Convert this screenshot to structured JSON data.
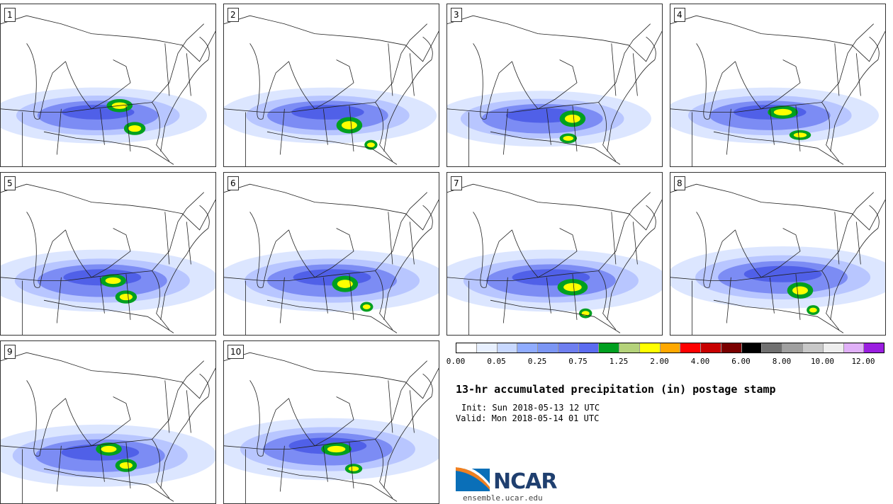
{
  "panels": [
    {
      "label": "1",
      "blobs": [
        [
          0.45,
          0.68,
          0.28,
          0.09
        ],
        [
          0.55,
          0.62,
          0.06,
          0.04
        ],
        [
          0.62,
          0.76,
          0.05,
          0.04
        ]
      ]
    },
    {
      "label": "2",
      "blobs": [
        [
          0.48,
          0.68,
          0.28,
          0.09
        ],
        [
          0.58,
          0.74,
          0.06,
          0.05
        ],
        [
          0.68,
          0.86,
          0.03,
          0.03
        ]
      ]
    },
    {
      "label": "3",
      "blobs": [
        [
          0.44,
          0.7,
          0.28,
          0.09
        ],
        [
          0.58,
          0.7,
          0.06,
          0.05
        ],
        [
          0.56,
          0.82,
          0.04,
          0.03
        ]
      ]
    },
    {
      "label": "4",
      "blobs": [
        [
          0.46,
          0.68,
          0.28,
          0.09
        ],
        [
          0.52,
          0.66,
          0.07,
          0.04
        ],
        [
          0.6,
          0.8,
          0.05,
          0.03
        ]
      ]
    },
    {
      "label": "5",
      "blobs": [
        [
          0.47,
          0.66,
          0.3,
          0.1
        ],
        [
          0.52,
          0.66,
          0.06,
          0.04
        ],
        [
          0.58,
          0.76,
          0.05,
          0.04
        ]
      ]
    },
    {
      "label": "6",
      "blobs": [
        [
          0.5,
          0.66,
          0.3,
          0.1
        ],
        [
          0.56,
          0.68,
          0.06,
          0.05
        ],
        [
          0.66,
          0.82,
          0.03,
          0.03
        ]
      ]
    },
    {
      "label": "7",
      "blobs": [
        [
          0.48,
          0.66,
          0.3,
          0.1
        ],
        [
          0.58,
          0.7,
          0.07,
          0.05
        ],
        [
          0.64,
          0.86,
          0.03,
          0.03
        ]
      ]
    },
    {
      "label": "8",
      "blobs": [
        [
          0.52,
          0.64,
          0.3,
          0.1
        ],
        [
          0.6,
          0.72,
          0.06,
          0.05
        ],
        [
          0.66,
          0.84,
          0.03,
          0.03
        ]
      ]
    },
    {
      "label": "9",
      "blobs": [
        [
          0.46,
          0.7,
          0.3,
          0.1
        ],
        [
          0.5,
          0.66,
          0.06,
          0.04
        ],
        [
          0.58,
          0.76,
          0.05,
          0.04
        ]
      ]
    },
    {
      "label": "10",
      "blobs": [
        [
          0.48,
          0.66,
          0.3,
          0.1
        ],
        [
          0.52,
          0.66,
          0.07,
          0.04
        ],
        [
          0.6,
          0.78,
          0.04,
          0.03
        ]
      ]
    }
  ],
  "colorbar": {
    "colors": [
      "#ffffff",
      "#e8f0ff",
      "#c8d8ff",
      "#90acff",
      "#7c96f4",
      "#6f7ff0",
      "#5c6cf0",
      "#00a020",
      "#b4d27a",
      "#ffff00",
      "#ffa800",
      "#ff0000",
      "#c80000",
      "#7a0000",
      "#000000",
      "#707070",
      "#a0a0a0",
      "#c8c8c8",
      "#eeeeee",
      "#e0b0f8",
      "#9a1ee0"
    ],
    "tick_labels": [
      "0.00",
      "0.05",
      "0.25",
      "0.75",
      "1.25",
      "2.00",
      "4.00",
      "6.00",
      "8.00",
      "10.00",
      "12.00"
    ]
  },
  "title": "13-hr accumulated precipitation (in) postage stamp",
  "init": "Init: Sun 2018-05-13 12 UTC",
  "valid": "Valid: Mon 2018-05-14 01 UTC",
  "logo": {
    "text": "NCAR",
    "site": "ensemble.ucar.edu",
    "colors": {
      "blue": "#0a6fb8",
      "orange": "#f08020",
      "navy": "#1f3f6f"
    }
  },
  "map_colors": {
    "light": "#dce6ff",
    "mid": "#7c8cf4",
    "dark": "#5060e8",
    "green": "#00a020",
    "yellow": "#ffff00"
  }
}
